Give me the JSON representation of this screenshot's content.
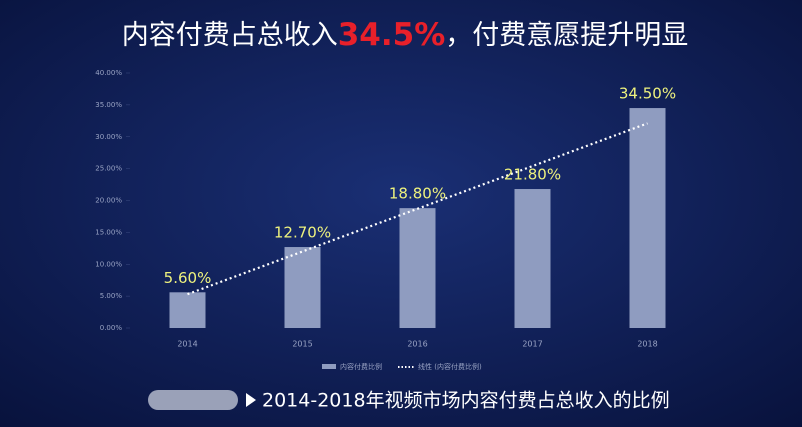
{
  "chart_data": {
    "type": "bar",
    "title": {
      "prefix": "内容付费占总收入",
      "highlight": "34.5%",
      "suffix": "，付费意愿提升明显"
    },
    "categories": [
      "2014",
      "2015",
      "2016",
      "2017",
      "2018"
    ],
    "series": [
      {
        "name": "内容付费比例",
        "color": "#8f9cc0",
        "values": [
          5.6,
          12.7,
          18.8,
          21.8,
          34.5
        ],
        "value_labels": [
          "5.60%",
          "12.70%",
          "18.80%",
          "21.80%",
          "34.50%"
        ]
      }
    ],
    "trendline": {
      "name": "线性 (内容付费比例)",
      "color": "#ffffff",
      "values": [
        5.3,
        12.0,
        18.7,
        25.4,
        32.1
      ]
    },
    "ylim": [
      0,
      40
    ],
    "yticks": [
      {
        "value": 0,
        "label": "0.00%"
      },
      {
        "value": 5,
        "label": "5.00%"
      },
      {
        "value": 10,
        "label": "10.00%"
      },
      {
        "value": 15,
        "label": "15.00%"
      },
      {
        "value": 20,
        "label": "20.00%"
      },
      {
        "value": 25,
        "label": "25.00%"
      },
      {
        "value": 30,
        "label": "30.00%"
      },
      {
        "value": 35,
        "label": "35.00%"
      },
      {
        "value": 40,
        "label": "40.00%"
      }
    ],
    "caption": "2014-2018年视频市场内容付费占总收入的比例"
  }
}
